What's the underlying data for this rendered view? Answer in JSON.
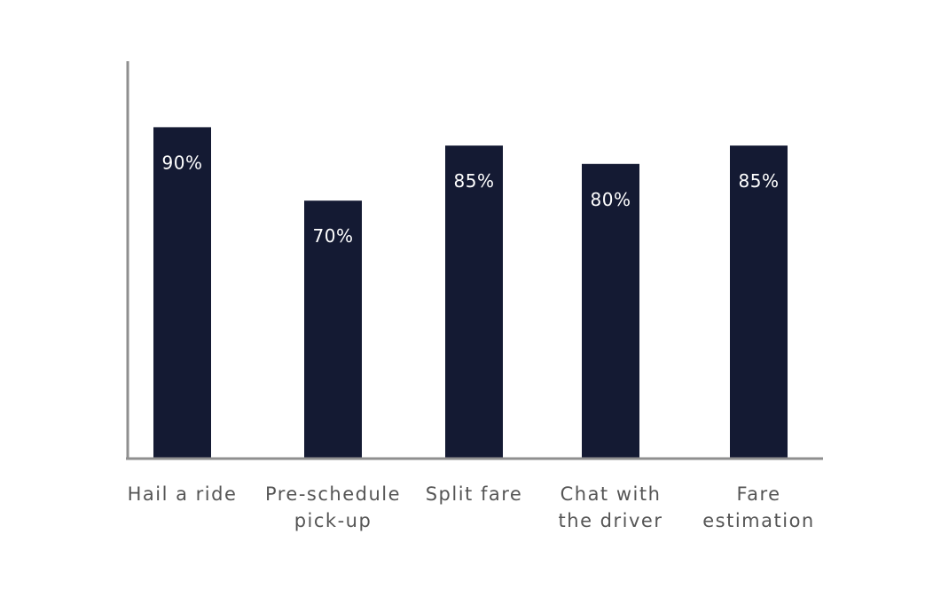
{
  "chart_data": {
    "type": "bar",
    "categories": [
      [
        "Hail a ride"
      ],
      [
        "Pre-schedule",
        "pick-up"
      ],
      [
        "Split fare"
      ],
      [
        "Chat with",
        "the driver"
      ],
      [
        "Fare",
        "estimation"
      ]
    ],
    "values": [
      90,
      70,
      85,
      80,
      85
    ],
    "value_labels": [
      "90%",
      "70%",
      "85%",
      "80%",
      "85%"
    ],
    "title": "",
    "xlabel": "",
    "ylabel": "",
    "ylim": [
      0,
      100
    ],
    "grid": false,
    "colors": {
      "bar": "#141a33",
      "axis": "#8f8f8f",
      "category_text": "#555555",
      "value_text": "#ffffff"
    }
  }
}
